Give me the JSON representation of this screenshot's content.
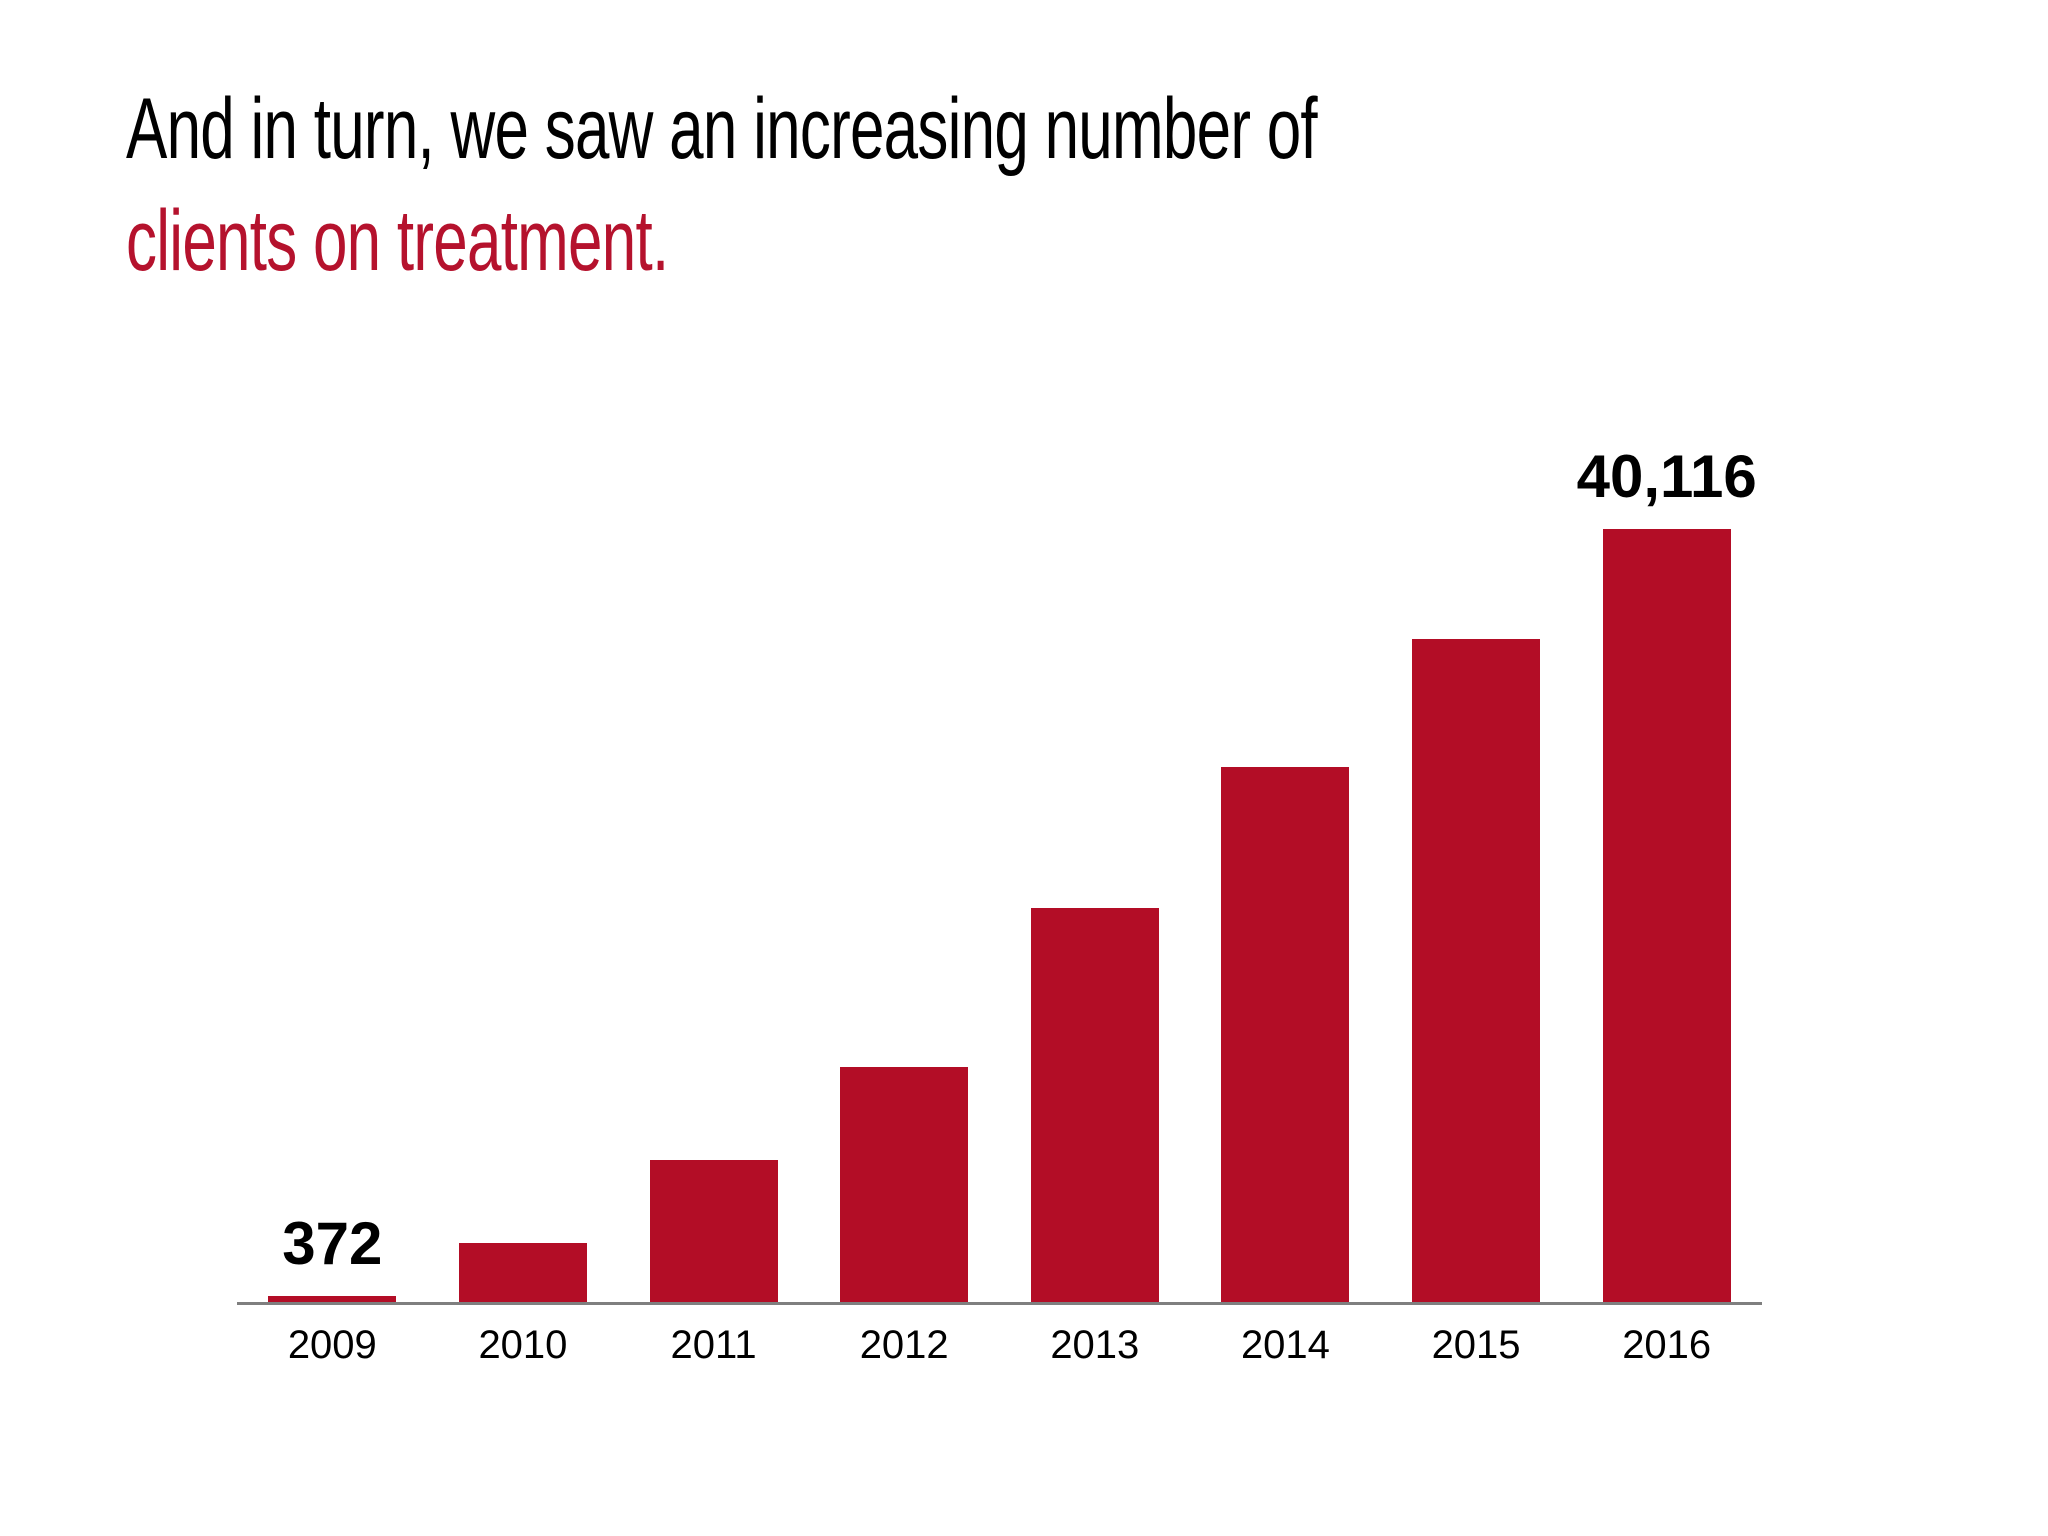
{
  "slide": {
    "background": "#FFFFFF",
    "title": {
      "line1": "And in turn, we saw an increasing number of",
      "line2": "clients on treatment.",
      "line1_color": "#000000",
      "accent_color": "#B5122D"
    }
  },
  "chart_data": {
    "type": "bar",
    "title": "And in turn, we saw an increasing number of clients on treatment.",
    "categories": [
      "2009",
      "2010",
      "2011",
      "2012",
      "2013",
      "2014",
      "2015",
      "2016"
    ],
    "values": [
      372,
      3100,
      7400,
      12250,
      20450,
      27800,
      34400,
      40116
    ],
    "value_display_labels": [
      "372",
      "",
      "",
      "",
      "",
      "",
      "",
      "40,116"
    ],
    "xlabel": "",
    "ylabel": "",
    "ylim": [
      0,
      40116
    ],
    "grid": false,
    "legend": "none",
    "bar_color": "#B30D26",
    "axis_line_color": "#7F7F7F",
    "label_color": "#000000"
  }
}
